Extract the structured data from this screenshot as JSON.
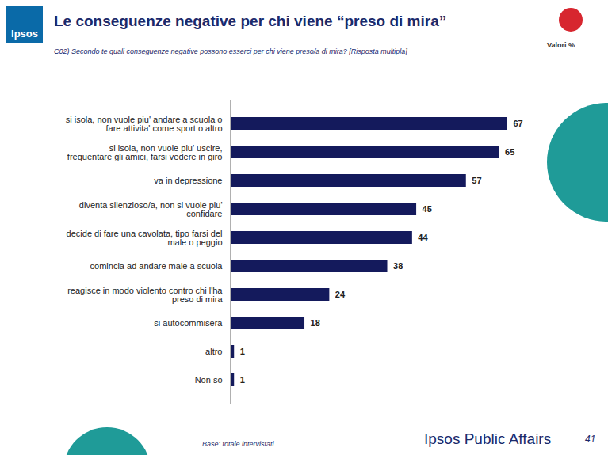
{
  "chart_data": {
    "type": "bar",
    "orientation": "horizontal",
    "title": "Le conseguenze negative per chi viene “preso di mira”",
    "subtitle": "C02) Secondo te quali conseguenze negative possono esserci per chi viene preso/a di mira? [Risposta multipla]",
    "categories": [
      "si isola, non vuole piu' andare a scuola o fare attivita' come sport o altro",
      "si isola, non vuole piu' uscire, frequentare gli amici, farsi vedere in giro",
      "va in depressione",
      "diventa silenzioso/a, non si vuole piu' confidare",
      "decide di fare una cavolata, tipo farsi del male o peggio",
      "comincia ad andare male a scuola",
      "reagisce in modo violento contro chi l'ha preso di mira",
      "si autocommisera",
      "altro",
      "Non so"
    ],
    "values": [
      67,
      65,
      57,
      45,
      44,
      38,
      24,
      18,
      1,
      1
    ],
    "color": "#141a5c",
    "data_labels": true,
    "tick_labels": "y",
    "annotations": [
      "Ipsos",
      "Valori %",
      "Base: totale intervistati",
      "Ipsos Public Affairs",
      "41"
    ]
  }
}
